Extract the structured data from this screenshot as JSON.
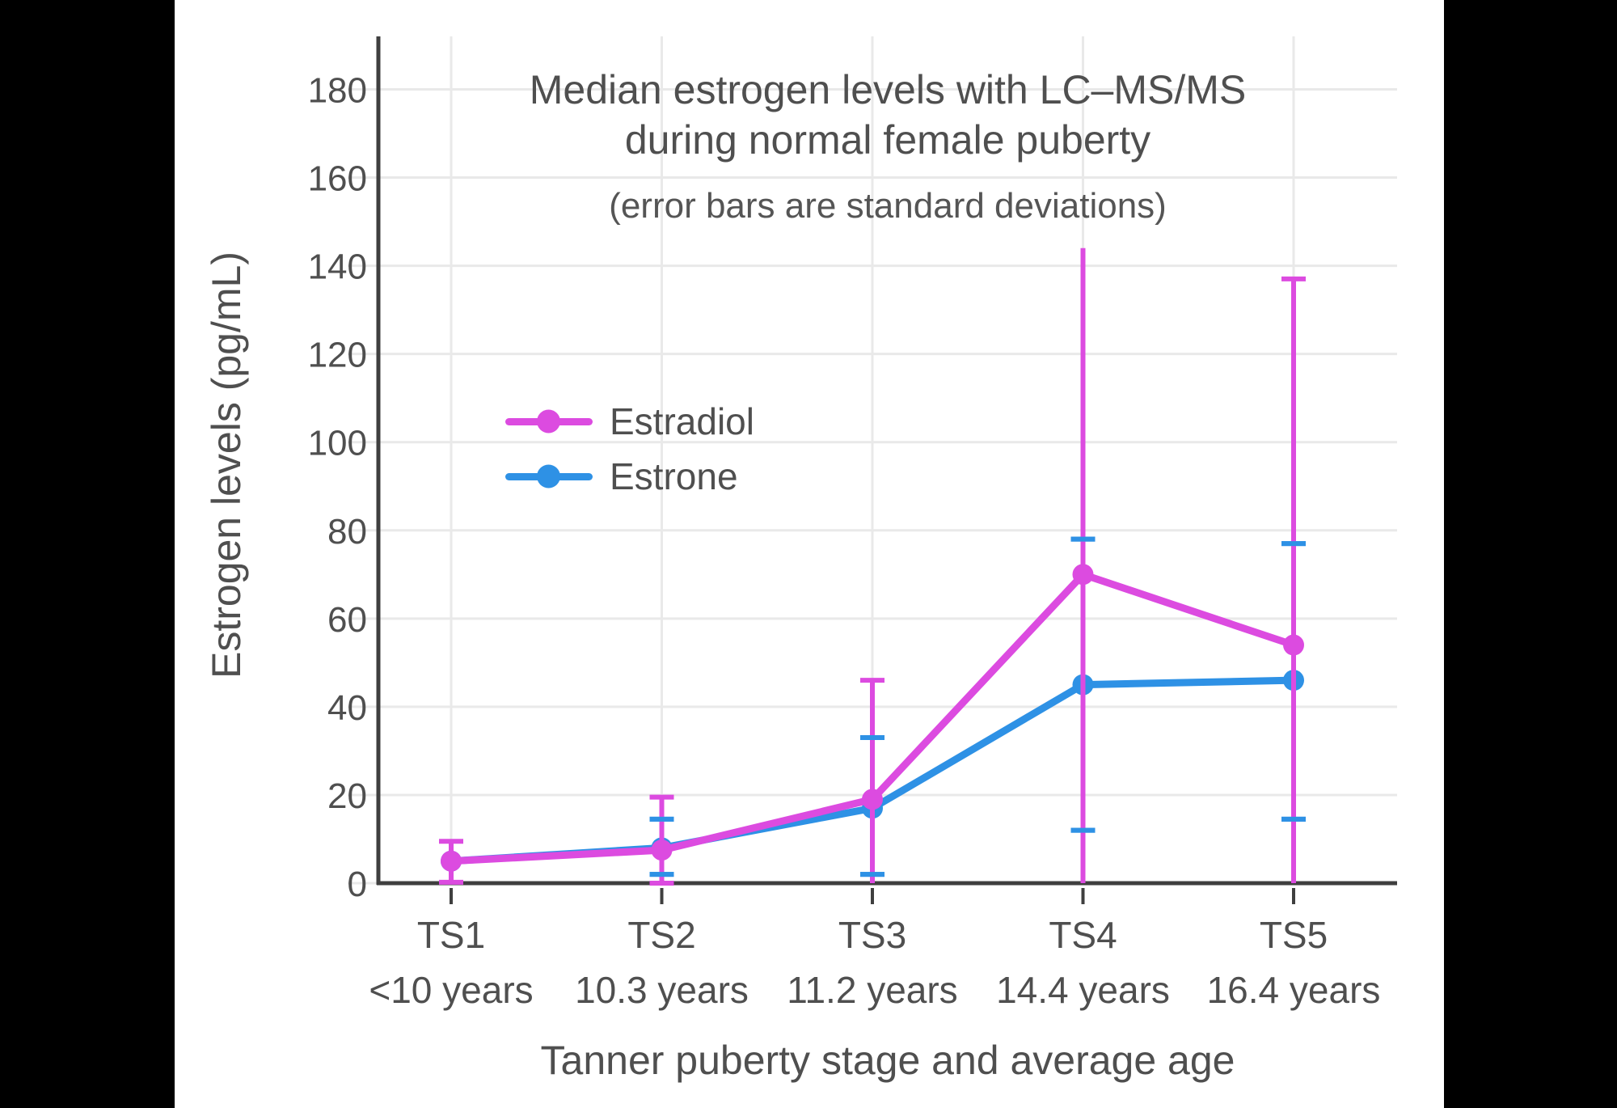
{
  "window": {
    "background": "#000000",
    "canvas_background": "#FFFFFF"
  },
  "colors": {
    "axis": "#3F3F3F",
    "grid": "#E9E9E9",
    "text": "#4F4F4F"
  },
  "chart_data": {
    "type": "line",
    "title": "Median estrogen levels with LC–MS/MS during normal female puberty",
    "title_lines": [
      "Median estrogen levels with LC–MS/MS",
      "during normal female puberty"
    ],
    "subtitle": "(error bars are standard deviations)",
    "xlabel": "Tanner puberty stage and average age",
    "ylabel": "Estrogen levels (pg/mL)",
    "categories": [
      "TS1",
      "TS2",
      "TS3",
      "TS4",
      "TS5"
    ],
    "category_sublabels": [
      "<10 years",
      "10.3 years",
      "11.2 years",
      "14.4 years",
      "16.4 years"
    ],
    "yticks": [
      0,
      20,
      40,
      60,
      80,
      100,
      120,
      140,
      160,
      180
    ],
    "ylim": [
      0,
      192
    ],
    "grid": true,
    "error_bars": "standard deviations",
    "legend": {
      "position": "inside-upper-left",
      "entries": [
        "Estradiol",
        "Estrone"
      ]
    },
    "series": [
      {
        "name": "Estradiol",
        "color": "#DC4BE0",
        "values": [
          5,
          7.5,
          19,
          70,
          54
        ],
        "error_high": [
          9.5,
          19.5,
          46,
          144,
          137
        ],
        "error_low": [
          0.2,
          0,
          0,
          0,
          0
        ],
        "error_high_cap": [
          true,
          true,
          true,
          false,
          true
        ],
        "error_low_cap": [
          true,
          true,
          false,
          false,
          false
        ]
      },
      {
        "name": "Estrone",
        "color": "#2E91E5",
        "values": [
          5,
          8,
          17,
          45,
          46
        ],
        "error_high": [
          null,
          14.5,
          33,
          78,
          77
        ],
        "error_low": [
          null,
          2,
          2,
          12,
          14.5
        ],
        "error_high_cap": [
          false,
          true,
          true,
          true,
          true
        ],
        "error_low_cap": [
          false,
          true,
          true,
          true,
          true
        ]
      }
    ]
  }
}
